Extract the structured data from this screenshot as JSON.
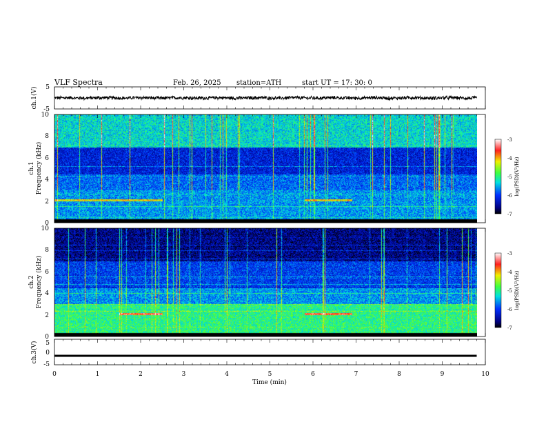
{
  "header": {
    "title": "VLF Spectra",
    "date": "Feb. 26, 2025",
    "station": "station=ATH",
    "start": "start UT =  17: 30: 0"
  },
  "chart_data": [
    {
      "type": "line",
      "panel": "ch1-waveform",
      "ylabel": "ch.1(V)",
      "ylim": [
        -5,
        5
      ],
      "yticks": [
        "5",
        "-5"
      ],
      "xlim": [
        0,
        10
      ],
      "series": [
        {
          "values_summary": "noisy trace around 0 V, amplitude about ±1 V"
        }
      ]
    },
    {
      "type": "heatmap",
      "panel": "ch1-spectrogram",
      "ylabel_line1": "ch.1",
      "ylabel_line2": "Frequency (kHz)",
      "ylim": [
        0,
        10
      ],
      "yticks": [
        "0",
        "2",
        "4",
        "6",
        "8",
        "10"
      ],
      "xlim": [
        0,
        9.8
      ],
      "colorbar": {
        "label": "log(PSD)(V²/Hz)",
        "range": [
          -7,
          -3
        ],
        "ticks": [
          "-3",
          "-4",
          "-5",
          "-6",
          "-7"
        ]
      },
      "features": {
        "high_band_psd_above_7kHz": -5.3,
        "mid_band_psd_4_to_7kHz": -6.2,
        "low_band_psd_below_3kHz": -5.6,
        "enhanced_band_2kHz_time_ranges_min": [
          [
            0.0,
            2.5
          ],
          [
            5.8,
            6.9
          ]
        ]
      }
    },
    {
      "type": "heatmap",
      "panel": "ch2-spectrogram",
      "ylabel_line1": "ch.2",
      "ylabel_line2": "Frequency (kHz)",
      "ylim": [
        0,
        10
      ],
      "yticks": [
        "0",
        "2",
        "4",
        "6",
        "8",
        "10"
      ],
      "xlim": [
        0,
        9.8
      ],
      "colorbar": {
        "label": "log(PSD)(V²/Hz)",
        "range": [
          -7,
          -3
        ],
        "ticks": [
          "-3",
          "-4",
          "-5",
          "-6",
          "-7"
        ]
      },
      "features": {
        "high_band_psd_above_7kHz": -6.6,
        "mid_band_psd_4_to_7kHz": -6.0,
        "low_band_psd_below_3kHz": -5.0,
        "enhanced_band_2kHz_time_ranges_min": [
          [
            1.5,
            2.5
          ],
          [
            5.8,
            6.9
          ]
        ]
      }
    },
    {
      "type": "line",
      "panel": "ch3-waveform",
      "ylabel": "ch.3(V)",
      "ylim": [
        -5,
        5
      ],
      "yticks": [
        "5",
        "0",
        "-5"
      ],
      "xlabel": "Time (min)",
      "xlim": [
        0,
        10
      ],
      "xticks": [
        "0",
        "1",
        "2",
        "3",
        "4",
        "5",
        "6",
        "7",
        "8",
        "9",
        "10"
      ],
      "series": [
        {
          "values_summary": "flat trace at about -1.5 V"
        }
      ]
    }
  ],
  "colors": {
    "black": "#000000",
    "darkblue": "#000080",
    "blue": "#0020ff",
    "cyan": "#00e0e0",
    "green": "#40ff40",
    "yellow": "#f0f000",
    "red": "#ff2020",
    "white": "#ffffff"
  }
}
